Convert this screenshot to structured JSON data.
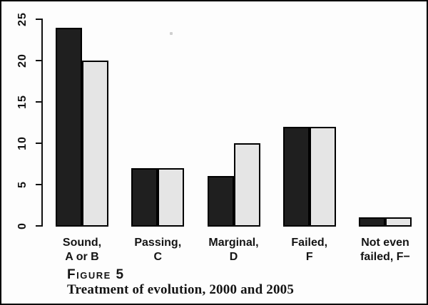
{
  "figure": {
    "label": "Figure 5",
    "caption": "Treatment of evolution, 2000 and 2005"
  },
  "chart_data": {
    "type": "bar",
    "title": "Figure 5",
    "subtitle": "Treatment of evolution, 2000 and 2005",
    "categories": [
      [
        "Sound,",
        "A or B"
      ],
      [
        "Passing,",
        "C"
      ],
      [
        "Marginal,",
        "D"
      ],
      [
        "Failed,",
        "F"
      ],
      [
        "Not even",
        "failed, F−"
      ]
    ],
    "series": [
      {
        "name": "2000",
        "color": "#1f1f1f",
        "values": [
          24,
          7,
          6,
          12,
          1
        ]
      },
      {
        "name": "2005",
        "color": "#e5e5e5",
        "values": [
          20,
          7,
          10,
          12,
          1
        ]
      }
    ],
    "xlabel": "",
    "ylabel": "",
    "ylim": [
      0,
      25
    ],
    "yticks": [
      0,
      5,
      10,
      15,
      20,
      25
    ],
    "grid": false,
    "legend": "none"
  }
}
